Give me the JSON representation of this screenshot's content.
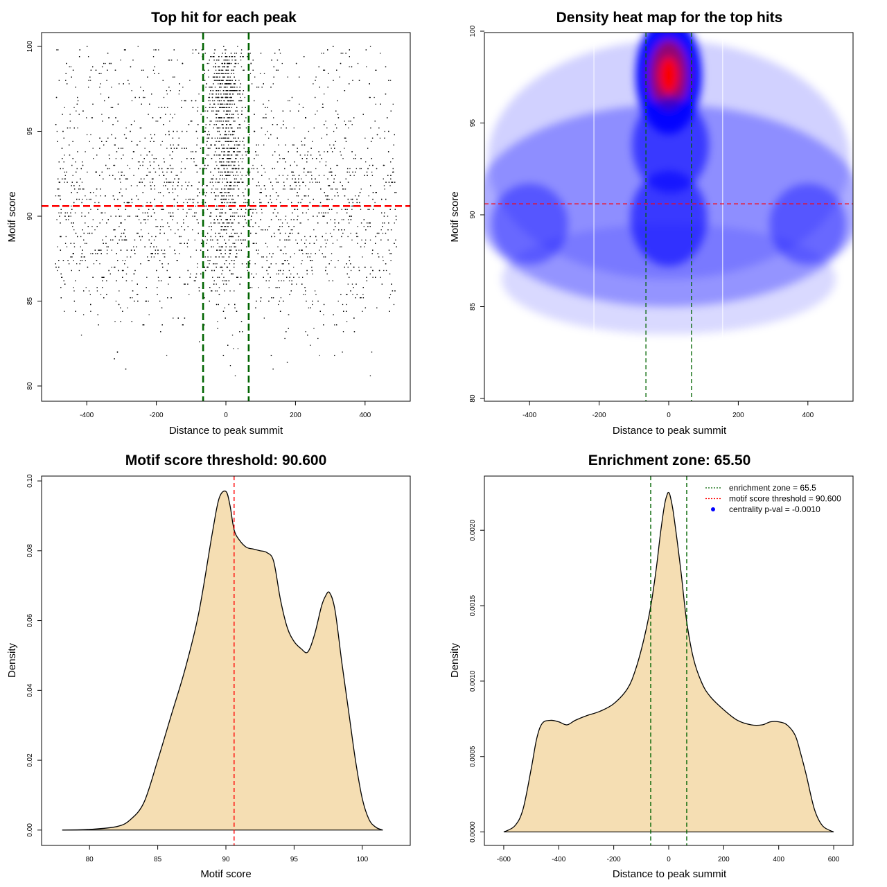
{
  "colors": {
    "fill": "#F5DEB3",
    "threshold_line": "#FF0000",
    "zone_line": "#006400",
    "heat_low": "#FFFFFF",
    "heat_mid": "#0000FF",
    "heat_high": "#FF0000"
  },
  "chart_data": [
    {
      "type": "scatter",
      "title": "Top hit for each peak",
      "xlabel": "Distance to peak summit",
      "ylabel": "Motif score",
      "xlim": [
        -500,
        500
      ],
      "ylim": [
        80,
        100
      ],
      "xticks": [
        -400,
        -200,
        0,
        200,
        400
      ],
      "yticks": [
        80,
        85,
        90,
        95,
        100
      ],
      "xtick_labels": [
        "-400",
        "-200",
        "0",
        "200",
        "400"
      ],
      "ytick_labels": [
        "80",
        "85",
        "90",
        "95",
        "100"
      ],
      "hlines": [
        90.6
      ],
      "vlines": [
        -65.5,
        65.5
      ],
      "point_distribution": {
        "n_points": 6000,
        "x_range": [
          -490,
          490
        ],
        "score_range": [
          80,
          100
        ],
        "central_enrichment_sd": 25,
        "central_fraction": 0.28,
        "score_modes": [
          89.5,
          93.5,
          97.6
        ]
      },
      "grid": false
    },
    {
      "type": "heatmap",
      "title": "Density heat map for the top hits",
      "xlabel": "Distance to peak summit",
      "ylabel": "Motif score",
      "xlim": [
        -500,
        500
      ],
      "ylim": [
        80,
        100
      ],
      "xticks": [
        -400,
        -200,
        0,
        200,
        400
      ],
      "yticks": [
        80,
        85,
        90,
        95,
        100
      ],
      "xtick_labels": [
        "-400",
        "-200",
        "0",
        "200",
        "400"
      ],
      "ytick_labels": [
        "80",
        "85",
        "90",
        "95",
        "100"
      ],
      "hlines": [
        90.6
      ],
      "vlines": [
        -65.5,
        65.5
      ],
      "density_peaks": [
        {
          "x": 0,
          "y": 97.6,
          "level": "high"
        },
        {
          "x": 5,
          "y": 93.8,
          "level": "medium"
        },
        {
          "x": 0,
          "y": 89.8,
          "level": "medium"
        },
        {
          "x": 400,
          "y": 89.5,
          "level": "low"
        },
        {
          "x": -400,
          "y": 89.5,
          "level": "low"
        }
      ],
      "grid": false
    },
    {
      "type": "area",
      "title": "Motif score threshold: 90.600",
      "xlabel": "Motif score",
      "ylabel": "Density",
      "xlim": [
        77.5,
        102.5
      ],
      "ylim": [
        -0.004,
        0.101
      ],
      "xticks": [
        80,
        85,
        90,
        95,
        100
      ],
      "yticks": [
        0.0,
        0.02,
        0.04,
        0.06,
        0.08,
        0.1
      ],
      "xtick_labels": [
        "80",
        "85",
        "90",
        "95",
        "100"
      ],
      "ytick_labels": [
        "0.00",
        "0.02",
        "0.04",
        "0.06",
        "0.08",
        "0.10"
      ],
      "x": [
        78,
        80,
        82,
        83,
        84,
        85,
        86,
        87,
        88,
        89,
        89.5,
        90,
        90.3,
        90.6,
        91,
        91.5,
        92,
        92.5,
        93,
        93.5,
        94,
        94.5,
        95,
        95.5,
        96,
        96.5,
        97,
        97.3,
        97.6,
        98,
        98.5,
        99,
        99.5,
        100,
        100.5,
        101,
        101.5
      ],
      "y": [
        0.0,
        0.0002,
        0.001,
        0.003,
        0.008,
        0.02,
        0.033,
        0.046,
        0.062,
        0.085,
        0.095,
        0.097,
        0.093,
        0.086,
        0.083,
        0.081,
        0.0805,
        0.08,
        0.0795,
        0.077,
        0.066,
        0.058,
        0.054,
        0.052,
        0.051,
        0.056,
        0.064,
        0.067,
        0.068,
        0.063,
        0.048,
        0.034,
        0.02,
        0.009,
        0.003,
        0.0008,
        0.0
      ],
      "vlines": [
        90.6
      ],
      "grid": false
    },
    {
      "type": "area",
      "title": "Enrichment zone: 65.50",
      "xlabel": "Distance to peak summit",
      "ylabel": "Density",
      "xlim": [
        -620,
        620
      ],
      "ylim": [
        -8e-05,
        0.00235
      ],
      "xticks": [
        -600,
        -400,
        -200,
        0,
        200,
        400,
        600
      ],
      "yticks": [
        0.0,
        0.0005,
        0.001,
        0.0015,
        0.002
      ],
      "xtick_labels": [
        "-600",
        "-400",
        "-200",
        "0",
        "200",
        "400",
        "600"
      ],
      "ytick_labels": [
        "0.0000",
        "0.0005",
        "0.0010",
        "0.0015",
        "0.0020"
      ],
      "x": [
        -600,
        -560,
        -530,
        -500,
        -480,
        -460,
        -430,
        -400,
        -370,
        -340,
        -300,
        -250,
        -200,
        -150,
        -120,
        -90,
        -65,
        -45,
        -30,
        -15,
        -5,
        0,
        5,
        15,
        30,
        45,
        65,
        90,
        120,
        150,
        200,
        250,
        300,
        340,
        370,
        400,
        430,
        460,
        480,
        500,
        530,
        560,
        600
      ],
      "y": [
        0.0,
        4e-05,
        0.00015,
        0.00042,
        0.00062,
        0.00072,
        0.00074,
        0.00073,
        0.00071,
        0.00074,
        0.00077,
        0.0008,
        0.00085,
        0.00095,
        0.00108,
        0.00128,
        0.0015,
        0.00175,
        0.00198,
        0.00217,
        0.00224,
        0.00225,
        0.00223,
        0.00214,
        0.00194,
        0.00172,
        0.0014,
        0.00115,
        0.00099,
        0.0009,
        0.00081,
        0.00074,
        0.00071,
        0.00071,
        0.00073,
        0.00073,
        0.00071,
        0.00064,
        0.00052,
        0.00038,
        0.00015,
        4e-05,
        0.0
      ],
      "vlines": [
        -65.5,
        65.5
      ],
      "legend": {
        "position": "top-right",
        "entries": [
          {
            "label": "enrichment zone = 65.5",
            "style": "dotted",
            "color": "#006400"
          },
          {
            "label": "motif score threshold = 90.600",
            "style": "dotted",
            "color": "#FF0000"
          },
          {
            "label": "centrality p-val = -0.0010",
            "style": "point",
            "color": "#0000FF"
          }
        ]
      },
      "grid": false
    }
  ]
}
